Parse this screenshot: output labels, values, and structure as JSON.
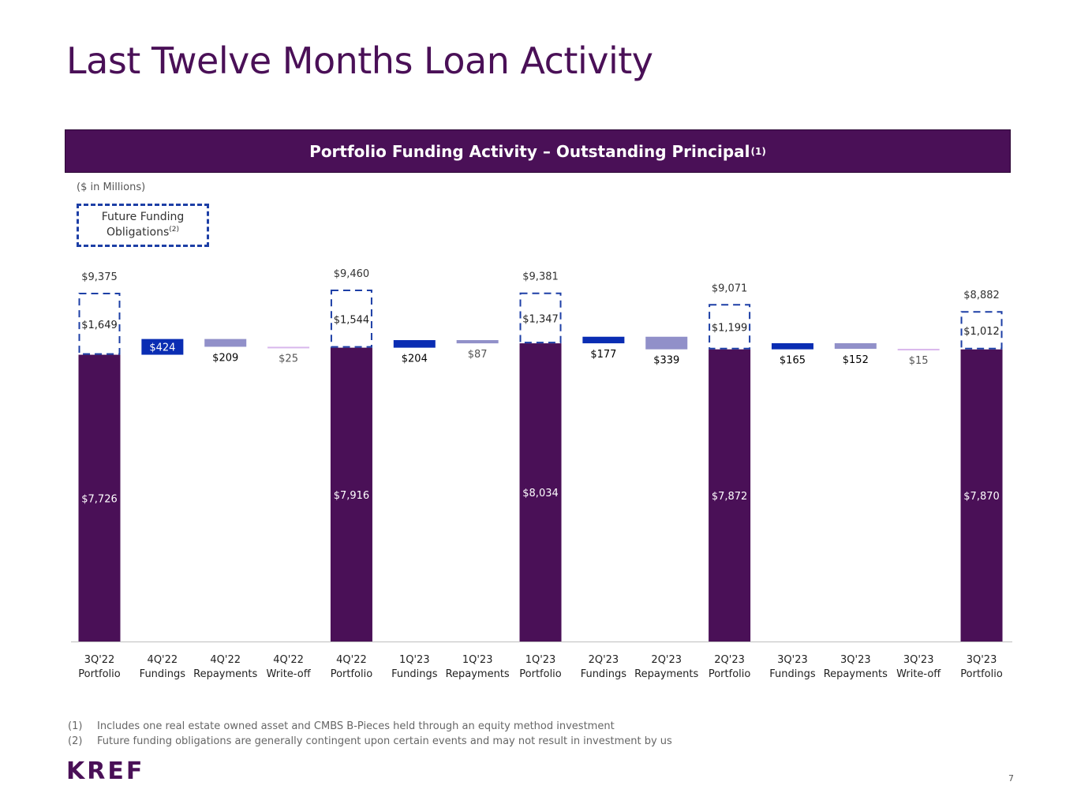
{
  "title": "Last Twelve Months Loan Activity",
  "header": {
    "text": "Portfolio Funding Activity – Outstanding Principal",
    "sup": "(1)"
  },
  "units_note": "($ in Millions)",
  "legend": {
    "line1": "Future Funding",
    "line2": "Obligations",
    "sup": "(2)"
  },
  "colors": {
    "portfolio": "#4a1057",
    "fundings": "#0a2db3",
    "repayments": "#9190c9",
    "writeoff": "#d8b6ec",
    "future_border": "#1d3fa6"
  },
  "chart_data": {
    "type": "bar",
    "subtype": "waterfall",
    "title": "Portfolio Funding Activity – Outstanding Principal",
    "unit": "$ in Millions",
    "ylim": [
      0,
      9500
    ],
    "categories": [
      {
        "label": "3Q'22",
        "sub": "Portfolio",
        "kind": "portfolio",
        "value": 7726,
        "future": 1649,
        "total": 9375,
        "value_label": "$7,726",
        "future_label": "$1,649",
        "total_label": "$9,375"
      },
      {
        "label": "4Q'22",
        "sub": "Fundings",
        "kind": "fundings",
        "value": 424,
        "value_label": "$424"
      },
      {
        "label": "4Q'22",
        "sub": "Repayments",
        "kind": "repayments",
        "value": 209,
        "value_label": "$209"
      },
      {
        "label": "4Q'22",
        "sub": "Write-off",
        "kind": "writeoff",
        "value": 25,
        "value_label": "$25"
      },
      {
        "label": "4Q'22",
        "sub": "Portfolio",
        "kind": "portfolio",
        "value": 7916,
        "future": 1544,
        "total": 9460,
        "value_label": "$7,916",
        "future_label": "$1,544",
        "total_label": "$9,460"
      },
      {
        "label": "1Q'23",
        "sub": "Fundings",
        "kind": "fundings",
        "value": 204,
        "value_label": "$204"
      },
      {
        "label": "1Q'23",
        "sub": "Repayments",
        "kind": "repayments",
        "value": 87,
        "value_label": "$87"
      },
      {
        "label": "1Q'23",
        "sub": "Portfolio",
        "kind": "portfolio",
        "value": 8034,
        "future": 1347,
        "total": 9381,
        "value_label": "$8,034",
        "future_label": "$1,347",
        "total_label": "$9,381"
      },
      {
        "label": "2Q'23",
        "sub": "Fundings",
        "kind": "fundings",
        "value": 177,
        "value_label": "$177"
      },
      {
        "label": "2Q'23",
        "sub": "Repayments",
        "kind": "repayments",
        "value": 339,
        "value_label": "$339"
      },
      {
        "label": "2Q'23",
        "sub": "Portfolio",
        "kind": "portfolio",
        "value": 7872,
        "future": 1199,
        "total": 9071,
        "value_label": "$7,872",
        "future_label": "$1,199",
        "total_label": "$9,071"
      },
      {
        "label": "3Q'23",
        "sub": "Fundings",
        "kind": "fundings",
        "value": 165,
        "value_label": "$165"
      },
      {
        "label": "3Q'23",
        "sub": "Repayments",
        "kind": "repayments",
        "value": 152,
        "value_label": "$152"
      },
      {
        "label": "3Q'23",
        "sub": "Write-off",
        "kind": "writeoff",
        "value": 15,
        "value_label": "$15"
      },
      {
        "label": "3Q'23",
        "sub": "Portfolio",
        "kind": "portfolio",
        "value": 7870,
        "future": 1012,
        "total": 8882,
        "value_label": "$7,870",
        "future_label": "$1,012",
        "total_label": "$8,882"
      }
    ]
  },
  "footnotes": [
    {
      "num": "(1)",
      "text": "Includes one real estate owned asset and CMBS B-Pieces held through an equity method investment"
    },
    {
      "num": "(2)",
      "text": "Future funding obligations are generally contingent upon certain events and may not result in investment by us"
    }
  ],
  "logo": "KREF",
  "page_number": "7"
}
